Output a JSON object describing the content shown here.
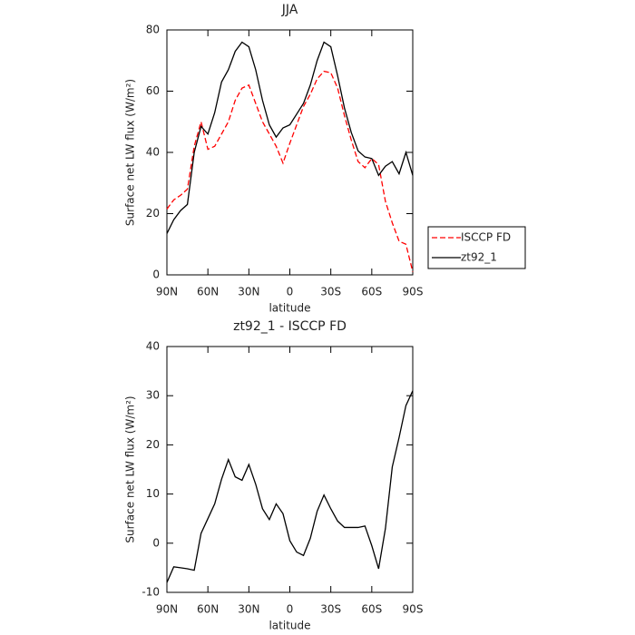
{
  "chart_data": [
    {
      "type": "line",
      "title": "JJA",
      "xlabel": "latitude",
      "ylabel": "Surface net LW flux (W/m²)",
      "x": [
        90,
        85,
        80,
        75,
        70,
        65,
        60,
        55,
        50,
        45,
        40,
        35,
        30,
        25,
        20,
        15,
        10,
        5,
        0,
        -5,
        -10,
        -15,
        -20,
        -25,
        -30,
        -35,
        -40,
        -45,
        -50,
        -55,
        -60,
        -65,
        -70,
        -75,
        -80,
        -85,
        -90
      ],
      "series": [
        {
          "name": "ISCCP FD",
          "color": "#ff0000",
          "linestyle": "dashed",
          "values": [
            21.5,
            24.5,
            26,
            28,
            42,
            50,
            41,
            42,
            46,
            50,
            57,
            61,
            62,
            56,
            50,
            46,
            42,
            36.5,
            43,
            49,
            55,
            59,
            64,
            66.5,
            66,
            61,
            52,
            44,
            37,
            35,
            38,
            36,
            24,
            17,
            11,
            10,
            1
          ]
        },
        {
          "name": "zt92_1",
          "color": "#000000",
          "linestyle": "solid",
          "values": [
            13.5,
            18,
            21,
            23,
            40,
            48.5,
            46,
            53,
            63,
            67,
            73,
            76,
            74.5,
            67,
            57,
            49,
            45,
            48,
            49,
            52.5,
            56,
            62,
            70,
            76,
            74.5,
            65,
            54.5,
            46.5,
            40.5,
            38.5,
            38,
            32.5,
            35.5,
            37,
            33,
            40,
            32.5
          ]
        }
      ],
      "xlim": [
        90,
        -90
      ],
      "xticks": [
        {
          "value": 90,
          "label": "90N"
        },
        {
          "value": 60,
          "label": "60N"
        },
        {
          "value": 30,
          "label": "30N"
        },
        0,
        {
          "value": -30,
          "label": "30S"
        },
        {
          "value": -60,
          "label": "60S"
        },
        {
          "value": -90,
          "label": "90S"
        }
      ],
      "ylim": [
        0,
        80
      ],
      "yticks": [
        0,
        20,
        40,
        60,
        80
      ],
      "legend": "right"
    },
    {
      "type": "line",
      "title": "zt92_1 - ISCCP FD",
      "xlabel": "latitude",
      "ylabel": "Surface net LW flux (W/m²)",
      "x": [
        90,
        85,
        80,
        75,
        70,
        65,
        60,
        55,
        50,
        45,
        40,
        35,
        30,
        25,
        20,
        15,
        10,
        5,
        0,
        -5,
        -10,
        -15,
        -20,
        -25,
        -30,
        -35,
        -40,
        -45,
        -50,
        -55,
        -60,
        -65,
        -70,
        -75,
        -80,
        -85,
        -90
      ],
      "series": [
        {
          "color": "#000000",
          "linestyle": "solid",
          "values": [
            -8,
            -4.8,
            -5,
            -5.2,
            -5.5,
            2,
            5,
            8,
            13,
            17,
            13.5,
            12.8,
            16,
            12,
            7,
            4.8,
            8,
            6,
            0.5,
            -1.8,
            -2.5,
            1,
            6.5,
            9.8,
            7,
            4.5,
            3.2,
            3.2,
            3.2,
            3.5,
            -0.5,
            -5.2,
            3,
            15.5,
            21.5,
            28,
            31
          ]
        }
      ],
      "xlim": [
        90,
        -90
      ],
      "xticks": [
        {
          "value": 90,
          "label": "90N"
        },
        {
          "value": 60,
          "label": "60N"
        },
        {
          "value": 30,
          "label": "30N"
        },
        0,
        {
          "value": -30,
          "label": "30S"
        },
        {
          "value": -60,
          "label": "60S"
        },
        {
          "value": -90,
          "label": "90S"
        }
      ],
      "ylim": [
        -10,
        40
      ],
      "yticks": [
        -10,
        0,
        10,
        20,
        30,
        40
      ]
    }
  ]
}
